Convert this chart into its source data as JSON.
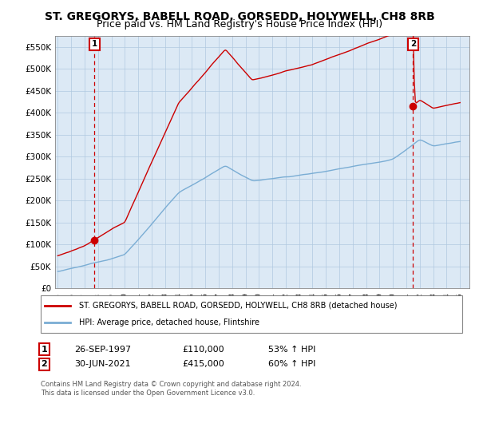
{
  "title": "ST. GREGORYS, BABELL ROAD, GORSEDD, HOLYWELL, CH8 8RB",
  "subtitle": "Price paid vs. HM Land Registry's House Price Index (HPI)",
  "title_fontsize": 10,
  "subtitle_fontsize": 9,
  "ylim": [
    0,
    575000
  ],
  "yticks": [
    0,
    50000,
    100000,
    150000,
    200000,
    250000,
    300000,
    350000,
    400000,
    450000,
    500000,
    550000
  ],
  "ytick_labels": [
    "£0",
    "£50K",
    "£100K",
    "£150K",
    "£200K",
    "£250K",
    "£300K",
    "£350K",
    "£400K",
    "£450K",
    "£500K",
    "£550K"
  ],
  "xlim_start": 1994.8,
  "xlim_end": 2025.7,
  "sale1_x": 1997.74,
  "sale1_y": 110000,
  "sale1_label": "1",
  "sale2_x": 2021.5,
  "sale2_y": 415000,
  "sale2_label": "2",
  "sale1_date": "26-SEP-1997",
  "sale1_price": "£110,000",
  "sale1_hpi": "53% ↑ HPI",
  "sale2_date": "30-JUN-2021",
  "sale2_price": "£415,000",
  "sale2_hpi": "60% ↑ HPI",
  "legend_line1": "ST. GREGORYS, BABELL ROAD, GORSEDD, HOLYWELL, CH8 8RB (detached house)",
  "legend_line2": "HPI: Average price, detached house, Flintshire",
  "footer1": "Contains HM Land Registry data © Crown copyright and database right 2024.",
  "footer2": "This data is licensed under the Open Government Licence v3.0.",
  "red_color": "#cc0000",
  "blue_color": "#7aadd4",
  "chart_bg": "#dce9f5",
  "bg_color": "#ffffff",
  "grid_color": "#b0c8e0"
}
